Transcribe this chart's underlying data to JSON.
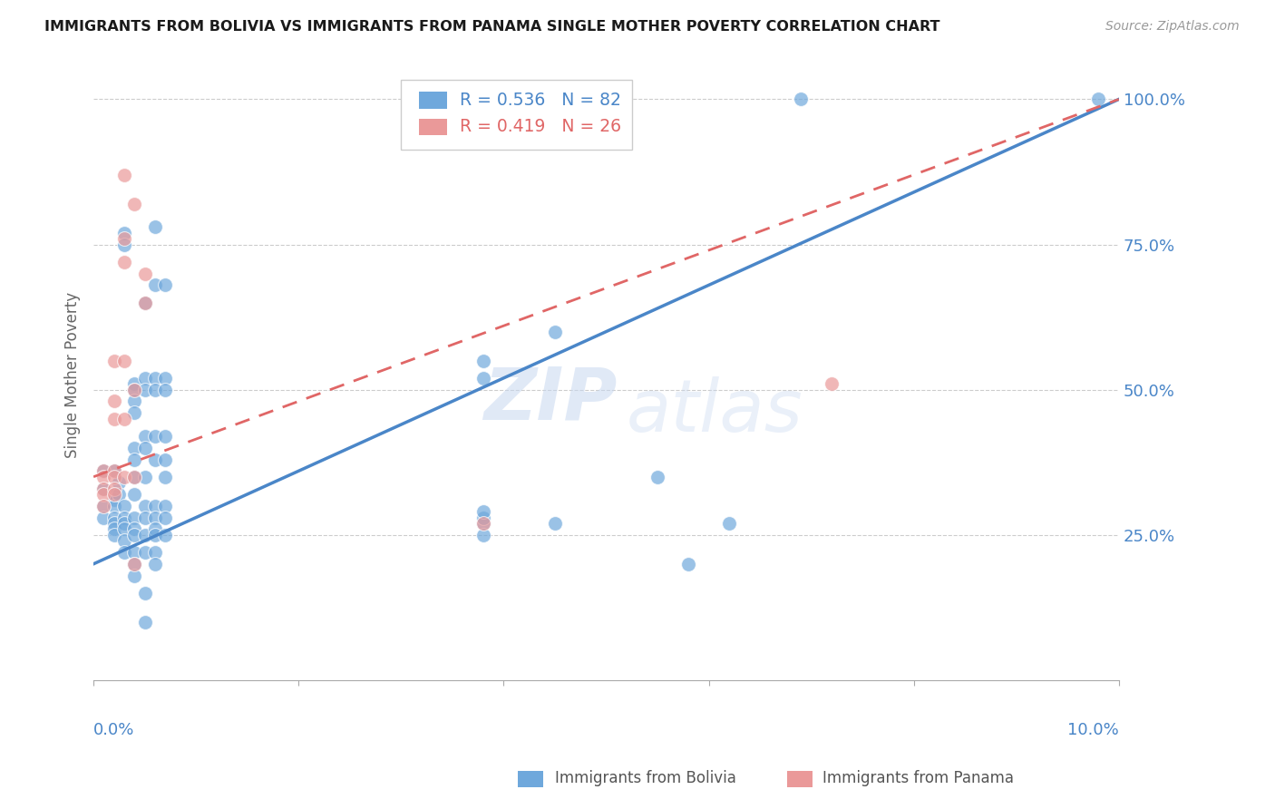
{
  "title": "IMMIGRANTS FROM BOLIVIA VS IMMIGRANTS FROM PANAMA SINGLE MOTHER POVERTY CORRELATION CHART",
  "source": "Source: ZipAtlas.com",
  "ylabel": "Single Mother Poverty",
  "bolivia_color": "#6fa8dc",
  "panama_color": "#ea9999",
  "line_bolivia_color": "#4a86c8",
  "line_panama_color": "#e06666",
  "watermark_zip": "ZIP",
  "watermark_atlas": "atlas",
  "bolivia_R": 0.536,
  "bolivia_N": 82,
  "panama_R": 0.419,
  "panama_N": 26,
  "x_range": [
    0.0,
    0.1
  ],
  "y_range": [
    0.0,
    1.05
  ],
  "bolivia_line": [
    0.0,
    0.2,
    0.1,
    1.0
  ],
  "panama_line": [
    0.0,
    0.35,
    0.1,
    1.0
  ],
  "bolivia_points": [
    [
      0.001,
      0.33
    ],
    [
      0.001,
      0.3
    ],
    [
      0.001,
      0.28
    ],
    [
      0.001,
      0.36
    ],
    [
      0.002,
      0.36
    ],
    [
      0.002,
      0.32
    ],
    [
      0.002,
      0.31
    ],
    [
      0.002,
      0.3
    ],
    [
      0.002,
      0.28
    ],
    [
      0.002,
      0.27
    ],
    [
      0.002,
      0.26
    ],
    [
      0.002,
      0.25
    ],
    [
      0.0025,
      0.34
    ],
    [
      0.0025,
      0.32
    ],
    [
      0.003,
      0.3
    ],
    [
      0.003,
      0.28
    ],
    [
      0.003,
      0.27
    ],
    [
      0.003,
      0.26
    ],
    [
      0.003,
      0.24
    ],
    [
      0.003,
      0.22
    ],
    [
      0.003,
      0.77
    ],
    [
      0.003,
      0.75
    ],
    [
      0.004,
      0.51
    ],
    [
      0.004,
      0.5
    ],
    [
      0.004,
      0.48
    ],
    [
      0.004,
      0.46
    ],
    [
      0.004,
      0.4
    ],
    [
      0.004,
      0.38
    ],
    [
      0.004,
      0.35
    ],
    [
      0.004,
      0.32
    ],
    [
      0.004,
      0.28
    ],
    [
      0.004,
      0.26
    ],
    [
      0.004,
      0.25
    ],
    [
      0.004,
      0.22
    ],
    [
      0.004,
      0.2
    ],
    [
      0.004,
      0.18
    ],
    [
      0.005,
      0.65
    ],
    [
      0.005,
      0.52
    ],
    [
      0.005,
      0.5
    ],
    [
      0.005,
      0.42
    ],
    [
      0.005,
      0.4
    ],
    [
      0.005,
      0.35
    ],
    [
      0.005,
      0.3
    ],
    [
      0.005,
      0.28
    ],
    [
      0.005,
      0.25
    ],
    [
      0.005,
      0.22
    ],
    [
      0.005,
      0.15
    ],
    [
      0.005,
      0.1
    ],
    [
      0.006,
      0.78
    ],
    [
      0.006,
      0.68
    ],
    [
      0.006,
      0.52
    ],
    [
      0.006,
      0.5
    ],
    [
      0.006,
      0.42
    ],
    [
      0.006,
      0.38
    ],
    [
      0.006,
      0.3
    ],
    [
      0.006,
      0.28
    ],
    [
      0.006,
      0.26
    ],
    [
      0.006,
      0.25
    ],
    [
      0.006,
      0.22
    ],
    [
      0.006,
      0.2
    ],
    [
      0.007,
      0.68
    ],
    [
      0.007,
      0.52
    ],
    [
      0.007,
      0.5
    ],
    [
      0.007,
      0.42
    ],
    [
      0.007,
      0.38
    ],
    [
      0.007,
      0.35
    ],
    [
      0.007,
      0.3
    ],
    [
      0.007,
      0.28
    ],
    [
      0.007,
      0.25
    ],
    [
      0.038,
      0.55
    ],
    [
      0.038,
      0.52
    ],
    [
      0.038,
      0.27
    ],
    [
      0.038,
      0.25
    ],
    [
      0.038,
      0.28
    ],
    [
      0.038,
      0.29
    ],
    [
      0.045,
      0.6
    ],
    [
      0.045,
      0.27
    ],
    [
      0.055,
      0.35
    ],
    [
      0.058,
      0.2
    ],
    [
      0.062,
      0.27
    ],
    [
      0.069,
      1.0
    ],
    [
      0.098,
      1.0
    ]
  ],
  "panama_points": [
    [
      0.001,
      0.36
    ],
    [
      0.001,
      0.35
    ],
    [
      0.001,
      0.33
    ],
    [
      0.001,
      0.32
    ],
    [
      0.001,
      0.3
    ],
    [
      0.002,
      0.55
    ],
    [
      0.002,
      0.48
    ],
    [
      0.002,
      0.45
    ],
    [
      0.002,
      0.36
    ],
    [
      0.002,
      0.35
    ],
    [
      0.002,
      0.33
    ],
    [
      0.002,
      0.32
    ],
    [
      0.003,
      0.87
    ],
    [
      0.003,
      0.76
    ],
    [
      0.003,
      0.72
    ],
    [
      0.003,
      0.55
    ],
    [
      0.003,
      0.45
    ],
    [
      0.003,
      0.35
    ],
    [
      0.004,
      0.82
    ],
    [
      0.004,
      0.5
    ],
    [
      0.004,
      0.35
    ],
    [
      0.004,
      0.2
    ],
    [
      0.005,
      0.7
    ],
    [
      0.005,
      0.65
    ],
    [
      0.038,
      0.27
    ],
    [
      0.072,
      0.51
    ]
  ]
}
